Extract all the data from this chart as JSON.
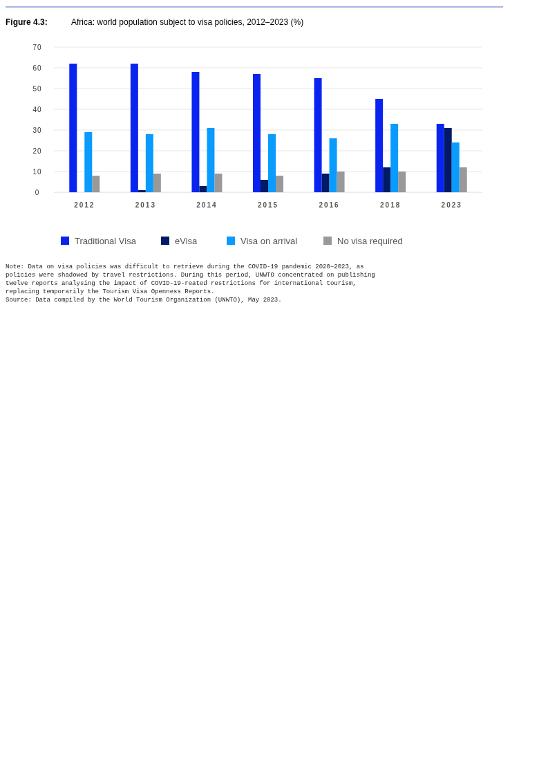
{
  "chart_data": {
    "type": "bar",
    "title": "Figure 4.3:",
    "subtitle": "Africa: world population subject to visa policies, 2012–2023 (%)",
    "categories": [
      "2012",
      "2013",
      "2014",
      "2015",
      "2016",
      "2018",
      "2023"
    ],
    "series": [
      {
        "name": "Traditional Visa",
        "color": "#0a24f0",
        "values": [
          62,
          62,
          58,
          57,
          55,
          45,
          33
        ]
      },
      {
        "name": "eVisa",
        "color": "#001a66",
        "values": [
          0,
          1,
          3,
          6,
          9,
          12,
          31
        ]
      },
      {
        "name": "Visa on arrival",
        "color": "#0a9bff",
        "values": [
          29,
          28,
          31,
          28,
          26,
          33,
          24
        ]
      },
      {
        "name": "No visa required",
        "color": "#999999",
        "values": [
          8,
          9,
          9,
          8,
          10,
          10,
          12
        ]
      }
    ],
    "ylim": [
      0,
      70
    ],
    "yticks": [
      0,
      10,
      20,
      30,
      40,
      50,
      60,
      70
    ],
    "grid": "y",
    "legend": "bottom",
    "annotations": [
      "Note: Data on visa policies was difficult to retrieve during the COVID-19 pandemic 2020–2023, as policies were shadowed by travel restrictions. During this period, UNWTO concentrated on publishing twelve reports analysing the impact of COVID-19-reated restrictions for international tourism, replacing temporarily the Tourism Visa Openness Reports.",
      "Source: Data compiled by the World Tourism Organization (UNWTO), May 2023."
    ]
  }
}
